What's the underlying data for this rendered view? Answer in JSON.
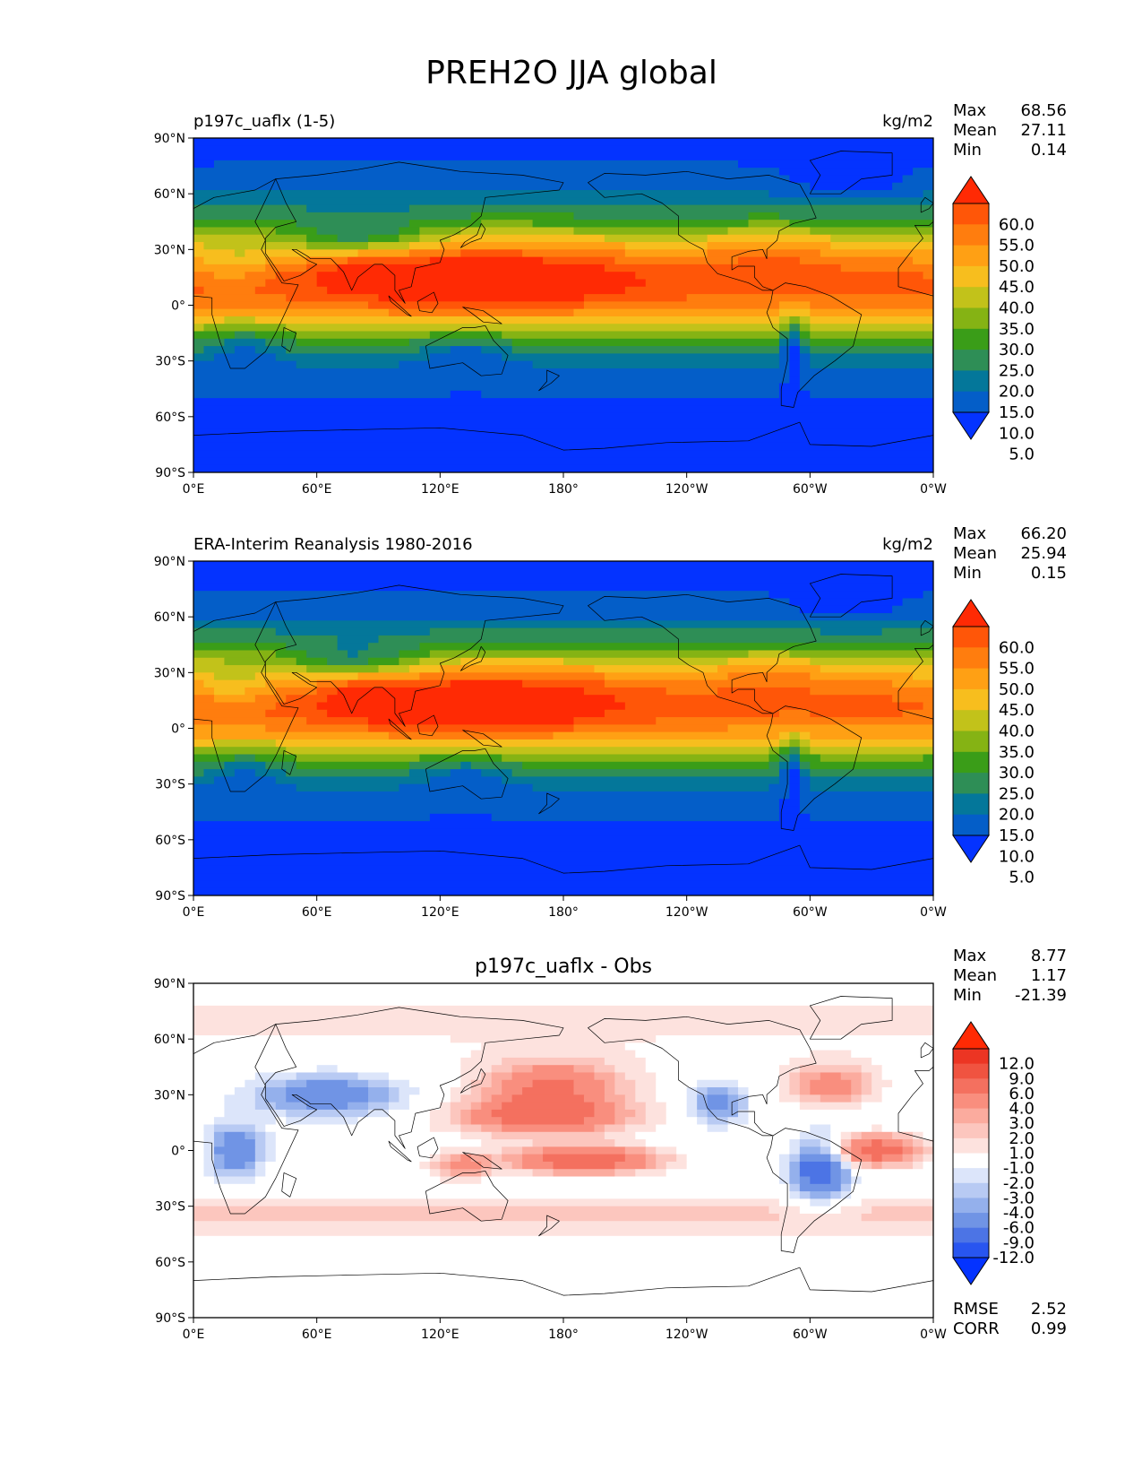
{
  "figure": {
    "title": "PREH2O JJA global"
  },
  "axes": {
    "lat_ticks": [
      "90°N",
      "60°N",
      "30°N",
      "0°",
      "30°S",
      "60°S",
      "90°S"
    ],
    "lon_ticks": [
      "0°E",
      "60°E",
      "120°E",
      "180°",
      "120°W",
      "60°W",
      "0°W"
    ]
  },
  "stat_labels": {
    "max": "Max",
    "mean": "Mean",
    "min": "Min",
    "rmse": "RMSE",
    "corr": "CORR"
  },
  "colors": {
    "abs_scale": [
      "#0433ff",
      "#045ec8",
      "#04779a",
      "#2e8e56",
      "#3a9d18",
      "#85b314",
      "#c2c21a",
      "#f7be1e",
      "#ffa014",
      "#ff7d0e",
      "#ff5608",
      "#ff2a04"
    ],
    "diff_scale": [
      "#0433ff",
      "#2855f0",
      "#4c74e5",
      "#7094e5",
      "#94b0ec",
      "#b8caf3",
      "#dce5fa",
      "#ffffff",
      "#fde2de",
      "#fcc6be",
      "#fbab9e",
      "#f98e7e",
      "#f4705f",
      "#f05340",
      "#ec3523",
      "#ff2a04"
    ]
  },
  "chart_data": [
    {
      "type": "heatmap",
      "title_left": "p197c_uaflx (1-5)",
      "title_right": "kg/m2",
      "stats": {
        "max": "68.56",
        "mean": "27.11",
        "min": "0.14"
      },
      "colorbar_levels": [
        "60.0",
        "55.0",
        "50.0",
        "45.0",
        "40.0",
        "35.0",
        "30.0",
        "25.0",
        "20.0",
        "15.0",
        "10.0",
        "5.0"
      ],
      "xlim": [
        0,
        360
      ],
      "ylim": [
        -90,
        90
      ]
    },
    {
      "type": "heatmap",
      "title_left": "ERA-Interim Reanalysis 1980-2016",
      "title_right": "kg/m2",
      "stats": {
        "max": "66.20",
        "mean": "25.94",
        "min": "0.15"
      },
      "colorbar_levels": [
        "60.0",
        "55.0",
        "50.0",
        "45.0",
        "40.0",
        "35.0",
        "30.0",
        "25.0",
        "20.0",
        "15.0",
        "10.0",
        "5.0"
      ],
      "xlim": [
        0,
        360
      ],
      "ylim": [
        -90,
        90
      ]
    },
    {
      "type": "heatmap",
      "title_center": "p197c_uaflx - Obs",
      "stats": {
        "max": "8.77",
        "mean": "1.17",
        "min": "-21.39",
        "rmse": "2.52",
        "corr": "0.99"
      },
      "colorbar_levels": [
        "12.0",
        "9.0",
        "6.0",
        "4.0",
        "3.0",
        "2.0",
        "1.0",
        "-1.0",
        "-2.0",
        "-3.0",
        "-4.0",
        "-6.0",
        "-9.0",
        "-12.0"
      ],
      "xlim": [
        0,
        360
      ],
      "ylim": [
        -90,
        90
      ]
    }
  ]
}
